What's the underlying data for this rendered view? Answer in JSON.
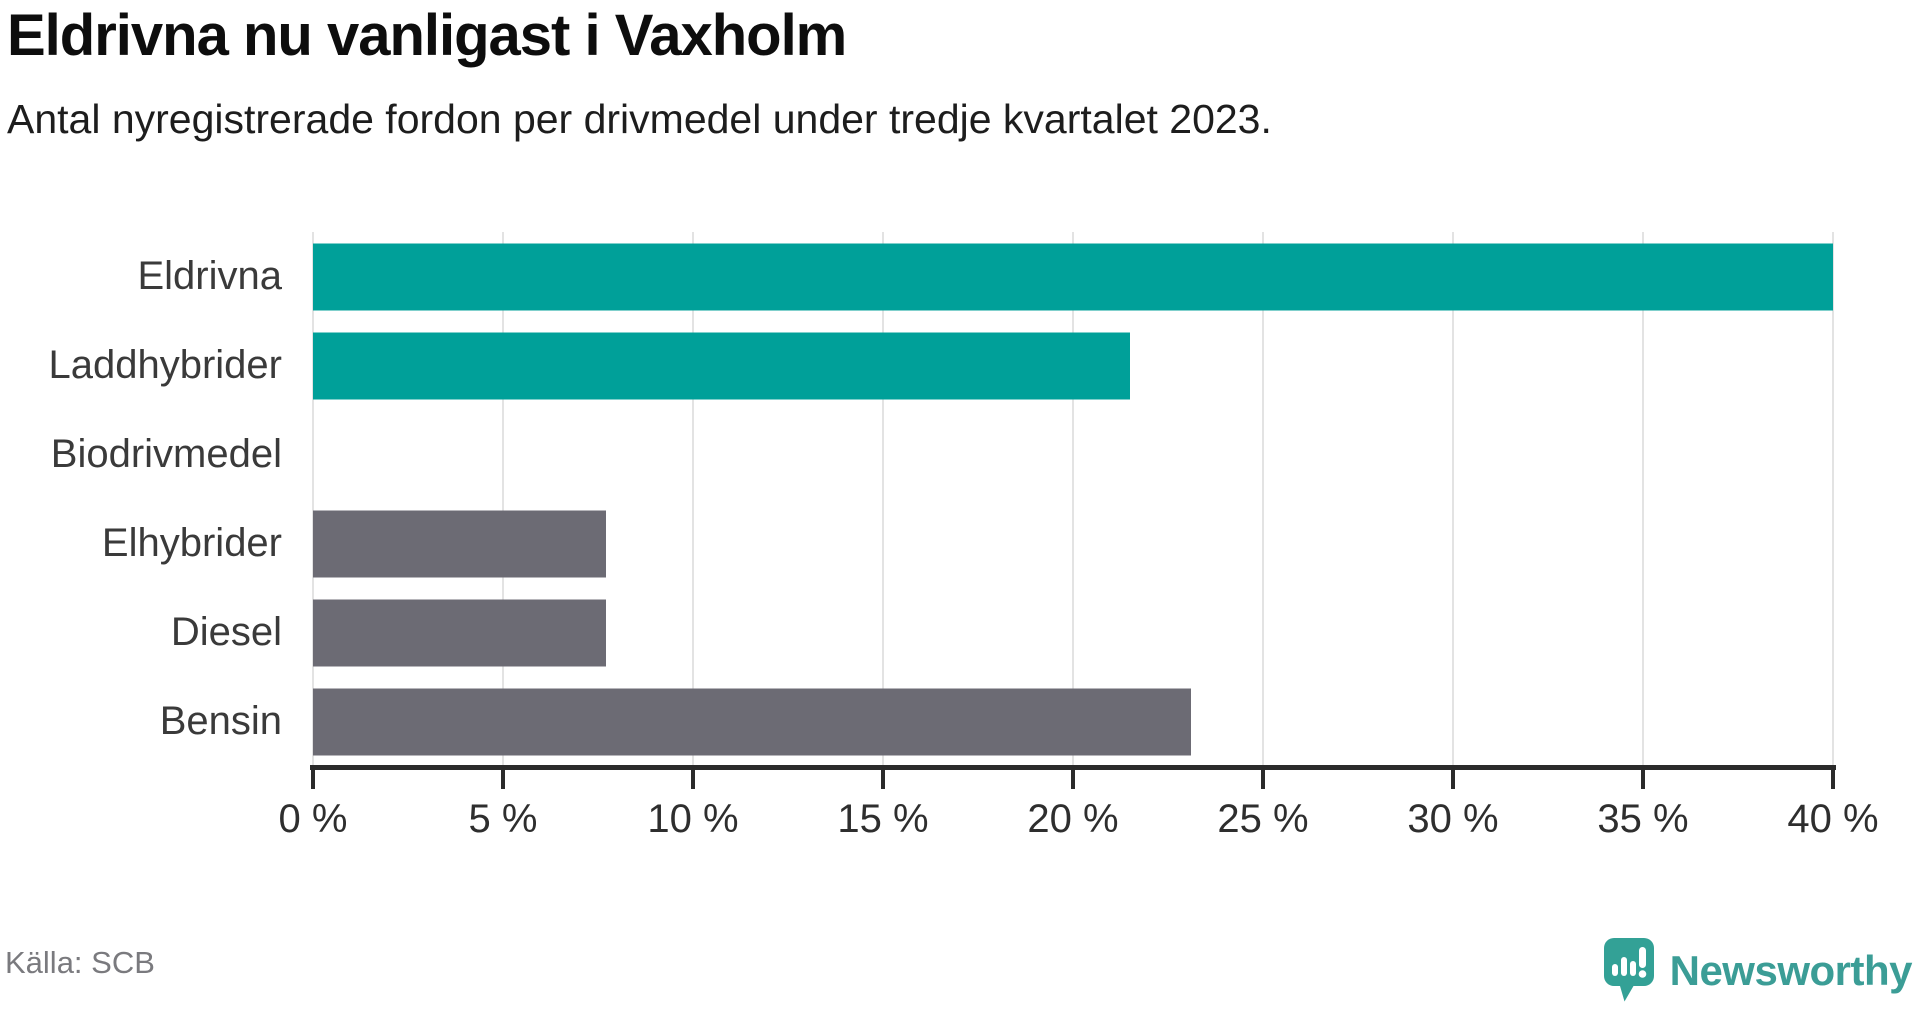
{
  "title": "Eldrivna nu vanligast i Vaxholm",
  "subtitle": "Antal nyregistrerade fordon per drivmedel under tredje kvartalet 2023.",
  "source": "Källa: SCB",
  "branding": {
    "name": "Newsworthy",
    "icon": "newsworthy-logo-icon",
    "icon_color": "#33a196",
    "text_color": "#3b9d96"
  },
  "colors": {
    "highlight": "#00a099",
    "muted": "#6c6b74",
    "axis": "#2b2b2b",
    "gridline": "#e3e3e3",
    "background": "#ffffff"
  },
  "chart_data": {
    "type": "bar",
    "orientation": "horizontal",
    "title": "Eldrivna nu vanligast i Vaxholm",
    "subtitle": "Antal nyregistrerade fordon per drivmedel under tredje kvartalet 2023.",
    "categories": [
      "Eldrivna",
      "Laddhybrider",
      "Biodrivmedel",
      "Elhybrider",
      "Diesel",
      "Bensin"
    ],
    "values": [
      40.0,
      21.5,
      0.0,
      7.7,
      7.7,
      23.1
    ],
    "unit": "%",
    "bar_colors": [
      "#00a099",
      "#00a099",
      "#6c6b74",
      "#6c6b74",
      "#6c6b74",
      "#6c6b74"
    ],
    "xlim": [
      0,
      40
    ],
    "x_tick_step": 5,
    "x_tick_labels": [
      "0 %",
      "5 %",
      "10 %",
      "15 %",
      "20 %",
      "25 %",
      "30 %",
      "35 %",
      "40 %"
    ],
    "grid": "vertical",
    "legend": "none",
    "xlabel": "",
    "ylabel": ""
  }
}
